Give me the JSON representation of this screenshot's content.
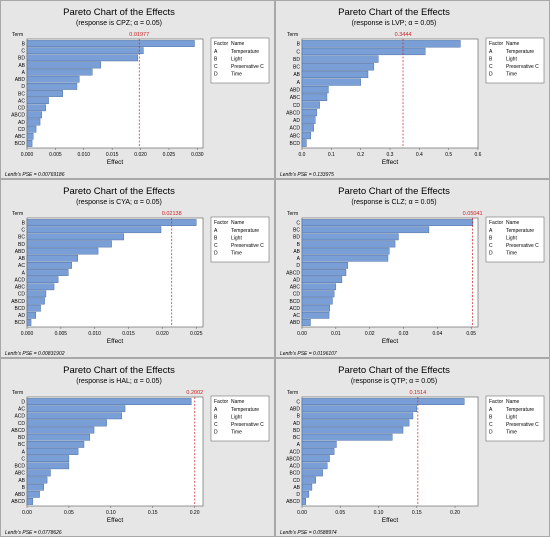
{
  "chart_data": [
    {
      "type": "bar",
      "orientation": "horizontal",
      "title": "Pareto Chart of the Effects",
      "subtitle": "(response is CPZ; α = 0.05)",
      "y_axis_label": "Term",
      "xlabel": "Effect",
      "ref_value": 0.01977,
      "ref_label": "0.01977",
      "xlim": [
        0,
        0.031
      ],
      "ticks": [
        "0.000",
        "0.005",
        "0.010",
        "0.015",
        "0.020",
        "0.025",
        "0.030"
      ],
      "tick_values": [
        0,
        0.005,
        0.01,
        0.015,
        0.02,
        0.025,
        0.03
      ],
      "categories": [
        "B",
        "C",
        "BD",
        "AB",
        "A",
        "ABD",
        "D",
        "BC",
        "AC",
        "CD",
        "ABCD",
        "AD",
        "CD",
        "ABC",
        "BCD"
      ],
      "values": [
        0.0295,
        0.0205,
        0.0195,
        0.013,
        0.0115,
        0.0092,
        0.0088,
        0.0063,
        0.0038,
        0.0033,
        0.0026,
        0.0023,
        0.0016,
        0.0011,
        0.0009
      ],
      "pse": "Lenth's PSE = 0.00769186"
    },
    {
      "type": "bar",
      "orientation": "horizontal",
      "title": "Pareto Chart of the Effects",
      "subtitle": "(response is LVP; α = 0.05)",
      "y_axis_label": "Term",
      "xlabel": "Effect",
      "ref_value": 0.3444,
      "ref_label": "0.3444",
      "xlim": [
        0,
        0.6
      ],
      "ticks": [
        "0.0",
        "0.1",
        "0.2",
        "0.3",
        "0.4",
        "0.5",
        "0.6"
      ],
      "tick_values": [
        0,
        0.1,
        0.2,
        0.3,
        0.4,
        0.5,
        0.6
      ],
      "categories": [
        "B",
        "C",
        "BD",
        "BC",
        "AB",
        "A",
        "ABD",
        "ABC",
        "CD",
        "ABCD",
        "AD",
        "ACD",
        "ABC",
        "BCD"
      ],
      "values": [
        0.54,
        0.42,
        0.26,
        0.245,
        0.225,
        0.2,
        0.09,
        0.085,
        0.06,
        0.05,
        0.045,
        0.04,
        0.03,
        0.015
      ],
      "pse": "Lenth's PSE = 0.133975"
    },
    {
      "type": "bar",
      "orientation": "horizontal",
      "title": "Pareto Chart of the Effects",
      "subtitle": "(response is CYA; α = 0.05)",
      "y_axis_label": "Term",
      "xlabel": "Effect",
      "ref_value": 0.02138,
      "ref_label": "0.02138",
      "xlim": [
        0,
        0.026
      ],
      "ticks": [
        "0.000",
        "0.005",
        "0.010",
        "0.015",
        "0.020",
        "0.025"
      ],
      "tick_values": [
        0,
        0.005,
        0.01,
        0.015,
        0.02,
        0.025
      ],
      "categories": [
        "B",
        "C",
        "BC",
        "BD",
        "ABD",
        "AB",
        "AC",
        "A",
        "ACD",
        "ABC",
        "CD",
        "ABCD",
        "BCD",
        "AD",
        "BCD"
      ],
      "values": [
        0.025,
        0.0198,
        0.0143,
        0.0125,
        0.0105,
        0.0075,
        0.0066,
        0.0061,
        0.0046,
        0.004,
        0.0028,
        0.0026,
        0.002,
        0.0013,
        0.0006
      ],
      "pse": "Lenth's PSE = 0.00831902"
    },
    {
      "type": "bar",
      "orientation": "horizontal",
      "title": "Pareto Chart of the Effects",
      "subtitle": "(response is CLZ; α = 0.05)",
      "y_axis_label": "Term",
      "xlabel": "Effect",
      "ref_value": 0.05041,
      "ref_label": "0.05041",
      "xlim": [
        0,
        0.052
      ],
      "ticks": [
        "0.00",
        "0.01",
        "0.02",
        "0.03",
        "0.04",
        "0.05"
      ],
      "tick_values": [
        0,
        0.01,
        0.02,
        0.03,
        0.04,
        0.05
      ],
      "categories": [
        "C",
        "BC",
        "BD",
        "B",
        "AB",
        "A",
        "D",
        "ABCD",
        "AD",
        "ABC",
        "CD",
        "BCD",
        "ACD",
        "AC",
        "ABD"
      ],
      "values": [
        0.0505,
        0.0375,
        0.0285,
        0.0275,
        0.0258,
        0.0254,
        0.0135,
        0.013,
        0.0118,
        0.01,
        0.0095,
        0.009,
        0.0082,
        0.008,
        0.0025
      ],
      "pse": "Lenth's PSE = 0.0196107"
    },
    {
      "type": "bar",
      "orientation": "horizontal",
      "title": "Pareto Chart of the Effects",
      "subtitle": "(response is HAL; α = 0.05)",
      "y_axis_label": "Term",
      "xlabel": "Effect",
      "ref_value": 0.2002,
      "ref_label": "0.2002",
      "xlim": [
        0,
        0.21
      ],
      "ticks": [
        "0.00",
        "0.05",
        "0.10",
        "0.15",
        "0.20"
      ],
      "tick_values": [
        0,
        0.05,
        0.1,
        0.15,
        0.2
      ],
      "categories": [
        "D",
        "AC",
        "ACD",
        "CD",
        "ABCD",
        "BD",
        "BC",
        "A",
        "C",
        "BCD",
        "ABC",
        "AB",
        "B",
        "ABD",
        "ABCD"
      ],
      "values": [
        0.196,
        0.117,
        0.113,
        0.095,
        0.08,
        0.075,
        0.068,
        0.061,
        0.05,
        0.05,
        0.028,
        0.024,
        0.02,
        0.015,
        0.007
      ],
      "pse": "Lenth's PSE = 0.0778626"
    },
    {
      "type": "bar",
      "orientation": "horizontal",
      "title": "Pareto Chart of the Effects",
      "subtitle": "(response is QTP; α = 0.05)",
      "y_axis_label": "Term",
      "xlabel": "Effect",
      "ref_value": 0.1514,
      "ref_label": "0.1514",
      "xlim": [
        0,
        0.23
      ],
      "ticks": [
        "0.00",
        "0.05",
        "0.10",
        "0.15",
        "0.20"
      ],
      "tick_values": [
        0,
        0.05,
        0.1,
        0.15,
        0.2
      ],
      "categories": [
        "C",
        "ABD",
        "B",
        "AD",
        "BD",
        "BC",
        "A",
        "ACD",
        "ABCD",
        "ACD",
        "BCD",
        "CD",
        "AB",
        "D",
        "ABCD"
      ],
      "values": [
        0.212,
        0.15,
        0.145,
        0.14,
        0.132,
        0.118,
        0.045,
        0.042,
        0.036,
        0.033,
        0.027,
        0.018,
        0.013,
        0.009,
        0.005
      ],
      "pse": "Lenth's PSE = 0.0588974"
    }
  ],
  "legend": {
    "header_factor": "Factor",
    "header_name": "Name",
    "rows": [
      {
        "factor": "A",
        "name": "Temperature"
      },
      {
        "factor": "B",
        "name": "Light"
      },
      {
        "factor": "C",
        "name": "Preservative C"
      },
      {
        "factor": "D",
        "name": "Time"
      }
    ]
  },
  "colors": {
    "bar_fill": "#7a9fd6",
    "bar_stroke": "#3b5f96",
    "reference_line": "#cc2222",
    "panel_bg": "#e6e6e6",
    "plot_bg": "#ffffff",
    "legend_bg": "#ffffff"
  }
}
